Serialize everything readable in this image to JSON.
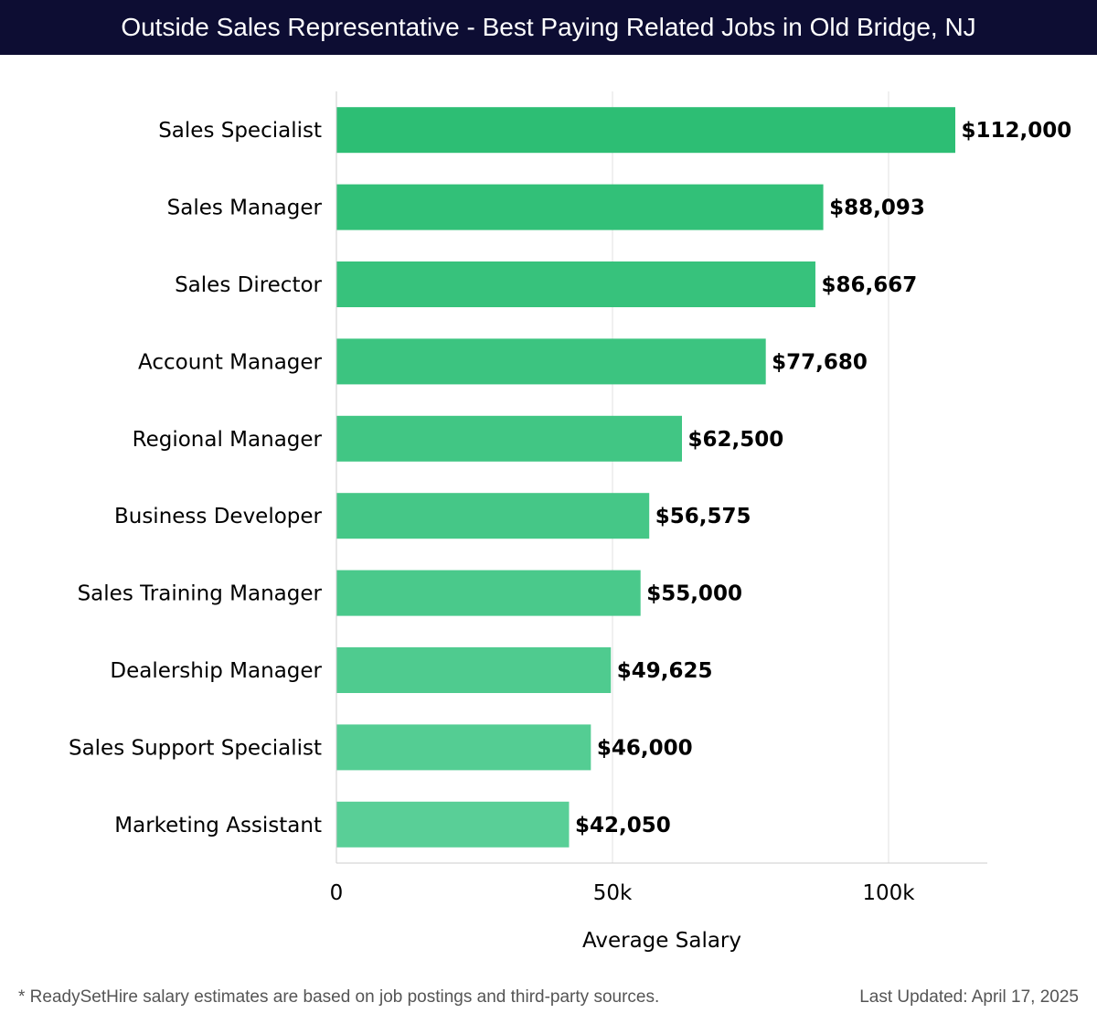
{
  "header": {
    "title": "Outside Sales Representative - Best Paying Related Jobs in Old Bridge, NJ"
  },
  "chart_data": {
    "type": "bar",
    "orientation": "horizontal",
    "categories": [
      "Sales Specialist",
      "Sales Manager",
      "Sales Director",
      "Account Manager",
      "Regional Manager",
      "Business Developer",
      "Sales Training Manager",
      "Dealership Manager",
      "Sales Support Specialist",
      "Marketing Assistant"
    ],
    "values": [
      112000,
      88093,
      86667,
      77680,
      62500,
      56575,
      55000,
      49625,
      46000,
      42050
    ],
    "value_labels": [
      "$112,000",
      "$88,093",
      "$86,667",
      "$77,680",
      "$62,500",
      "$56,575",
      "$55,000",
      "$49,625",
      "$46,000",
      "$42,050"
    ],
    "xlabel": "Average Salary",
    "ylabel": "",
    "xlim": [
      0,
      118000
    ],
    "xticks": [
      0,
      50000,
      100000
    ],
    "xtick_labels": [
      "0",
      "50k",
      "100k"
    ],
    "grid": true,
    "colors": {
      "bar_top": "#2dbe74",
      "bar_bottom": "#59cf97",
      "grid": "#e2e2e2",
      "axis": "#cccccc",
      "text": "#000000"
    }
  },
  "footer": {
    "note": "* ReadySetHire salary estimates are based on job postings and third-party sources.",
    "updated": "Last Updated: April 17, 2025"
  }
}
